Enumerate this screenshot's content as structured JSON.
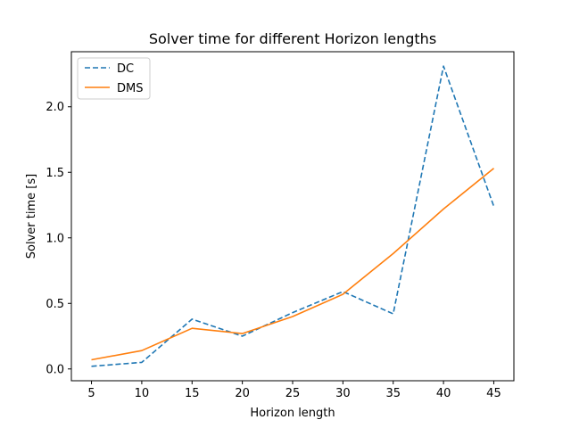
{
  "chart_data": {
    "type": "line",
    "title": "Solver time for different Horizon lengths",
    "xlabel": "Horizon length",
    "ylabel": "Solver time [s]",
    "x": [
      5,
      10,
      15,
      20,
      25,
      30,
      35,
      40,
      45
    ],
    "x_ticks": [
      "5",
      "10",
      "15",
      "20",
      "25",
      "30",
      "35",
      "40",
      "45"
    ],
    "y_ticks": [
      "0.0",
      "0.5",
      "1.0",
      "1.5",
      "2.0"
    ],
    "xlim": [
      3.0,
      47.0
    ],
    "ylim": [
      -0.09,
      2.42
    ],
    "grid": false,
    "legend_position": "upper-left",
    "series": [
      {
        "name": "DC",
        "color": "#1f77b4",
        "line_style": "dashed",
        "values": [
          0.02,
          0.05,
          0.38,
          0.25,
          0.43,
          0.59,
          0.42,
          2.31,
          1.24
        ]
      },
      {
        "name": "DMS",
        "color": "#ff7f0e",
        "line_style": "solid",
        "values": [
          0.07,
          0.14,
          0.31,
          0.27,
          0.4,
          0.57,
          0.88,
          1.22,
          1.53
        ]
      }
    ]
  }
}
